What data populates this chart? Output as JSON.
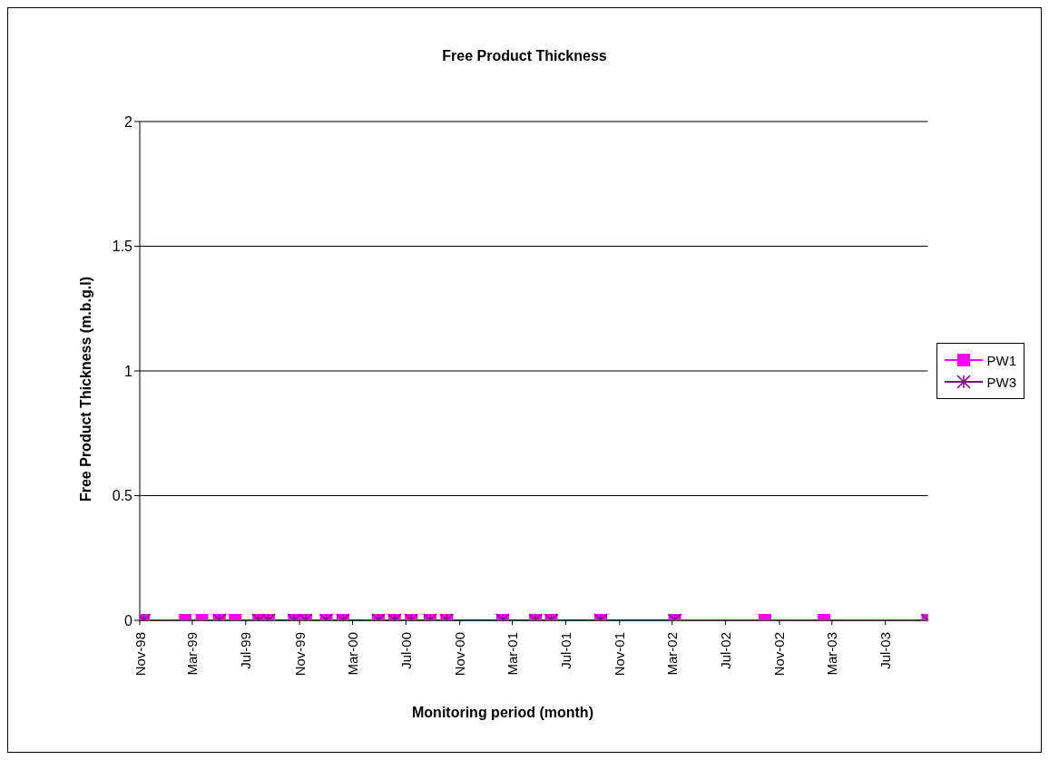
{
  "chart_data": {
    "type": "line",
    "title": "Free Product Thickness",
    "xlabel": "Monitoring period (month)",
    "ylabel": "Free Product Thickness (m.b.g.l)",
    "x": [
      "1998-11-10",
      "1999-02-13",
      "1999-03-23",
      "1999-05-02",
      "1999-06-07",
      "1999-07-31",
      "1999-08-22",
      "1999-10-20",
      "1999-11-15",
      "2000-01-01",
      "2000-02-08",
      "2000-04-29",
      "2000-06-05",
      "2000-07-13",
      "2000-08-25",
      "2000-10-02",
      "2001-02-07",
      "2001-04-23",
      "2001-05-29",
      "2001-09-19",
      "2002-03-07",
      "2002-09-29",
      "2003-02-11",
      "2003-10-06"
    ],
    "series": [
      {
        "name": "PW1",
        "color": "#ff00ff",
        "marker": "square",
        "values": [
          0,
          0,
          0,
          0,
          0,
          0,
          0,
          0,
          0,
          0,
          0,
          0,
          0,
          0,
          0,
          0,
          0,
          0,
          0,
          0,
          0,
          0,
          0,
          0
        ]
      },
      {
        "name": "PW3",
        "color": "#800080",
        "marker": "cross",
        "values": [
          0,
          null,
          null,
          0,
          null,
          0,
          0,
          0,
          0,
          0,
          0,
          0,
          0,
          0,
          0,
          0,
          0,
          0,
          0,
          0,
          0,
          null,
          null,
          0
        ]
      }
    ],
    "xlim": [
      "1998-11-01",
      "2003-10-06"
    ],
    "xticks": [
      {
        "value": "1998-11-01",
        "label": "Nov-98"
      },
      {
        "value": "1999-03-01",
        "label": "Mar-99"
      },
      {
        "value": "1999-07-01",
        "label": "Jul-99"
      },
      {
        "value": "1999-11-01",
        "label": "Nov-99"
      },
      {
        "value": "2000-03-01",
        "label": "Mar-00"
      },
      {
        "value": "2000-07-01",
        "label": "Jul-00"
      },
      {
        "value": "2000-11-01",
        "label": "Nov-00"
      },
      {
        "value": "2001-03-01",
        "label": "Mar-01"
      },
      {
        "value": "2001-07-01",
        "label": "Jul-01"
      },
      {
        "value": "2001-11-01",
        "label": "Nov-01"
      },
      {
        "value": "2002-03-01",
        "label": "Mar-02"
      },
      {
        "value": "2002-07-01",
        "label": "Jul-02"
      },
      {
        "value": "2002-11-01",
        "label": "Nov-02"
      },
      {
        "value": "2003-03-01",
        "label": "Mar-03"
      },
      {
        "value": "2003-07-01",
        "label": "Jul-03"
      }
    ],
    "ylim": [
      0,
      2
    ],
    "yticks": [
      0,
      0.5,
      1,
      1.5,
      2
    ],
    "grid": "y",
    "legend": "right",
    "line_style": "solid"
  }
}
